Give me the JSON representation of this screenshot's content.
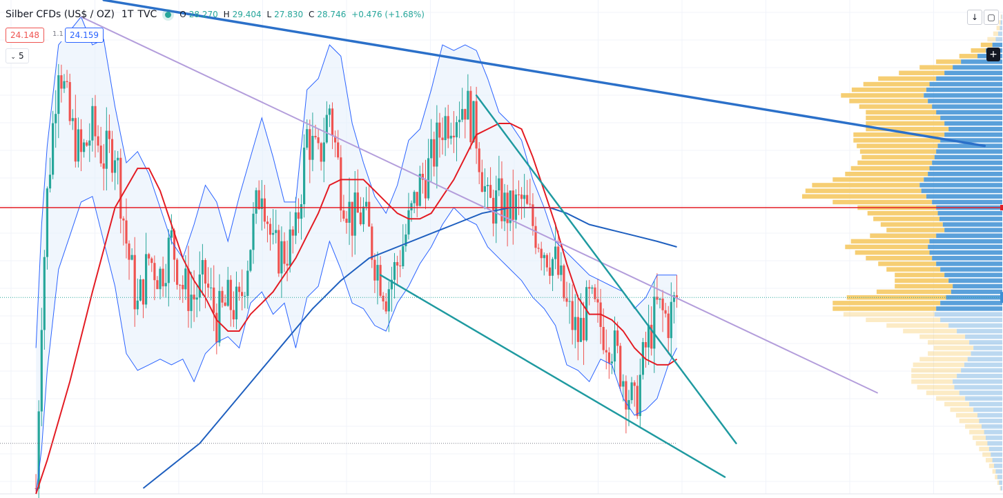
{
  "legend": {
    "symbol": "Silber CFDs (US$ / OZ)",
    "interval": "1T",
    "source": "TVC",
    "open_label": "O",
    "open": "28.270",
    "high_label": "H",
    "high": "29.404",
    "low_label": "L",
    "low": "27.830",
    "close_label": "C",
    "close": "28.746",
    "change": "+0.476 (+1.68%)"
  },
  "quote": {
    "bid": "24.148",
    "spread": "1.1",
    "ask": "24.159"
  },
  "indicators_toggle": {
    "chevron": "⌄",
    "count": "5"
  },
  "toolbar": {
    "download_icon": "arrow-down-icon",
    "fullscreen_icon": "square-icon",
    "add_icon": "plus-icon",
    "download_glyph": "↓",
    "fullscreen_glyph": "▢",
    "add_glyph": "+"
  },
  "chart_data": {
    "type": "candlestick",
    "x_range": [
      0,
      120
    ],
    "y_range": [
      22.0,
      30.8
    ],
    "colors": {
      "up": "#26a69a",
      "down": "#ef5350",
      "bollinger_band": "#2962ff",
      "bollinger_fill": "#e3effc",
      "sma_short": "#e31b23",
      "sma_long": "#1e5fbf",
      "horizontal_level": "#e31b23",
      "trendline_teal": "#1f9aa0",
      "trendline_blue": "#2b70c9",
      "trendline_lilac": "#b39ddb",
      "volume_profile_up": "#3d8fd4",
      "volume_profile_down": "#f5c65a"
    },
    "candle_trend": [
      [
        6,
        22.1
      ],
      [
        7,
        25.3
      ],
      [
        8,
        27.3
      ],
      [
        10,
        29.8
      ],
      [
        12,
        28.6
      ],
      [
        14,
        28.0
      ],
      [
        16,
        28.5
      ],
      [
        18,
        28.0
      ],
      [
        20,
        28.2
      ],
      [
        22,
        26.5
      ],
      [
        24,
        25.3
      ],
      [
        26,
        26.2
      ],
      [
        28,
        25.9
      ],
      [
        30,
        26.5
      ],
      [
        32,
        25.7
      ],
      [
        34,
        25.5
      ],
      [
        36,
        25.8
      ],
      [
        38,
        25.1
      ],
      [
        40,
        25.4
      ],
      [
        42,
        25.3
      ],
      [
        44,
        26.5
      ],
      [
        46,
        27.6
      ],
      [
        48,
        26.3
      ],
      [
        50,
        26.3
      ],
      [
        52,
        26.6
      ],
      [
        54,
        28.4
      ],
      [
        56,
        27.9
      ],
      [
        58,
        28.9
      ],
      [
        60,
        27.5
      ],
      [
        62,
        26.9
      ],
      [
        64,
        27.0
      ],
      [
        66,
        26.2
      ],
      [
        68,
        25.6
      ],
      [
        70,
        26.1
      ],
      [
        72,
        26.8
      ],
      [
        74,
        27.5
      ],
      [
        76,
        27.9
      ],
      [
        78,
        28.6
      ],
      [
        80,
        28.8
      ],
      [
        82,
        29.0
      ],
      [
        84,
        28.4
      ],
      [
        86,
        27.1
      ],
      [
        88,
        27.2
      ],
      [
        90,
        27.0
      ],
      [
        92,
        27.2
      ],
      [
        94,
        26.8
      ],
      [
        96,
        26.4
      ],
      [
        98,
        26.1
      ],
      [
        100,
        25.3
      ],
      [
        102,
        24.8
      ],
      [
        104,
        25.4
      ],
      [
        106,
        25.0
      ],
      [
        108,
        24.7
      ],
      [
        110,
        24.1
      ],
      [
        112,
        23.5
      ],
      [
        114,
        24.6
      ],
      [
        116,
        25.3
      ],
      [
        118,
        25.1
      ],
      [
        119.5,
        25.5
      ]
    ],
    "bollinger_upper": [
      [
        6,
        24.6
      ],
      [
        7,
        26.8
      ],
      [
        8,
        28.2
      ],
      [
        10,
        30.0
      ],
      [
        14,
        30.5
      ],
      [
        16,
        30.0
      ],
      [
        18,
        30.1
      ],
      [
        20,
        28.9
      ],
      [
        22,
        27.9
      ],
      [
        24,
        28.1
      ],
      [
        26,
        27.7
      ],
      [
        28,
        27.1
      ],
      [
        30,
        26.5
      ],
      [
        32,
        26.2
      ],
      [
        34,
        26.8
      ],
      [
        36,
        27.5
      ],
      [
        38,
        27.2
      ],
      [
        40,
        26.5
      ],
      [
        42,
        27.3
      ],
      [
        44,
        28.0
      ],
      [
        46,
        28.7
      ],
      [
        48,
        28.0
      ],
      [
        50,
        27.2
      ],
      [
        52,
        27.2
      ],
      [
        54,
        29.2
      ],
      [
        56,
        29.4
      ],
      [
        58,
        30.0
      ],
      [
        60,
        29.8
      ],
      [
        62,
        28.6
      ],
      [
        64,
        27.9
      ],
      [
        66,
        27.3
      ],
      [
        68,
        27.0
      ],
      [
        70,
        27.5
      ],
      [
        72,
        28.3
      ],
      [
        74,
        28.5
      ],
      [
        76,
        29.2
      ],
      [
        78,
        30.0
      ],
      [
        80,
        29.9
      ],
      [
        82,
        30.0
      ],
      [
        84,
        29.9
      ],
      [
        86,
        29.4
      ],
      [
        88,
        28.8
      ],
      [
        90,
        28.6
      ],
      [
        92,
        28.3
      ],
      [
        94,
        27.6
      ],
      [
        96,
        27.1
      ],
      [
        98,
        26.5
      ],
      [
        100,
        26.3
      ],
      [
        102,
        26.1
      ],
      [
        104,
        25.9
      ],
      [
        106,
        25.8
      ],
      [
        108,
        25.7
      ],
      [
        110,
        25.6
      ],
      [
        112,
        25.3
      ],
      [
        114,
        25.5
      ],
      [
        116,
        25.9
      ],
      [
        118,
        25.9
      ],
      [
        119.5,
        25.9
      ]
    ],
    "bollinger_lower": [
      [
        6,
        22.0
      ],
      [
        7,
        22.8
      ],
      [
        8,
        24.2
      ],
      [
        10,
        26.0
      ],
      [
        12,
        26.6
      ],
      [
        14,
        27.2
      ],
      [
        16,
        27.3
      ],
      [
        18,
        26.5
      ],
      [
        20,
        25.7
      ],
      [
        22,
        24.5
      ],
      [
        24,
        24.2
      ],
      [
        26,
        24.3
      ],
      [
        28,
        24.4
      ],
      [
        30,
        24.3
      ],
      [
        32,
        24.4
      ],
      [
        34,
        24.0
      ],
      [
        36,
        24.5
      ],
      [
        38,
        24.7
      ],
      [
        40,
        24.8
      ],
      [
        42,
        24.6
      ],
      [
        44,
        25.4
      ],
      [
        46,
        25.6
      ],
      [
        48,
        25.2
      ],
      [
        50,
        25.4
      ],
      [
        52,
        24.6
      ],
      [
        54,
        25.5
      ],
      [
        56,
        25.7
      ],
      [
        58,
        26.5
      ],
      [
        60,
        26.0
      ],
      [
        62,
        25.4
      ],
      [
        64,
        25.3
      ],
      [
        66,
        25.0
      ],
      [
        68,
        24.9
      ],
      [
        70,
        25.4
      ],
      [
        72,
        25.7
      ],
      [
        74,
        26.1
      ],
      [
        76,
        26.4
      ],
      [
        78,
        26.8
      ],
      [
        80,
        27.1
      ],
      [
        82,
        26.9
      ],
      [
        84,
        26.8
      ],
      [
        86,
        26.4
      ],
      [
        88,
        26.2
      ],
      [
        90,
        26.0
      ],
      [
        92,
        25.8
      ],
      [
        94,
        25.5
      ],
      [
        96,
        25.3
      ],
      [
        98,
        25.0
      ],
      [
        100,
        24.3
      ],
      [
        102,
        24.2
      ],
      [
        104,
        24.0
      ],
      [
        106,
        24.4
      ],
      [
        108,
        24.3
      ],
      [
        110,
        23.7
      ],
      [
        112,
        23.4
      ],
      [
        114,
        23.5
      ],
      [
        116,
        23.7
      ],
      [
        118,
        24.3
      ],
      [
        119.5,
        24.6
      ]
    ],
    "sma_short": [
      [
        6,
        22.0
      ],
      [
        8,
        22.6
      ],
      [
        12,
        24.0
      ],
      [
        16,
        25.6
      ],
      [
        20,
        27.1
      ],
      [
        24,
        27.8
      ],
      [
        26,
        27.8
      ],
      [
        28,
        27.4
      ],
      [
        30,
        26.8
      ],
      [
        32,
        26.2
      ],
      [
        34,
        25.8
      ],
      [
        36,
        25.5
      ],
      [
        38,
        25.1
      ],
      [
        40,
        24.9
      ],
      [
        42,
        24.9
      ],
      [
        44,
        25.2
      ],
      [
        46,
        25.4
      ],
      [
        48,
        25.6
      ],
      [
        50,
        25.9
      ],
      [
        52,
        26.2
      ],
      [
        54,
        26.6
      ],
      [
        56,
        27.0
      ],
      [
        58,
        27.5
      ],
      [
        60,
        27.6
      ],
      [
        62,
        27.6
      ],
      [
        64,
        27.6
      ],
      [
        66,
        27.4
      ],
      [
        68,
        27.2
      ],
      [
        70,
        27.0
      ],
      [
        72,
        26.9
      ],
      [
        74,
        26.9
      ],
      [
        76,
        27.0
      ],
      [
        78,
        27.3
      ],
      [
        80,
        27.6
      ],
      [
        82,
        28.0
      ],
      [
        84,
        28.4
      ],
      [
        86,
        28.5
      ],
      [
        88,
        28.6
      ],
      [
        90,
        28.6
      ],
      [
        92,
        28.5
      ],
      [
        94,
        28.0
      ],
      [
        96,
        27.4
      ],
      [
        98,
        26.8
      ],
      [
        100,
        26.1
      ],
      [
        102,
        25.5
      ],
      [
        104,
        25.2
      ],
      [
        106,
        25.2
      ],
      [
        108,
        25.1
      ],
      [
        110,
        24.9
      ],
      [
        112,
        24.6
      ],
      [
        114,
        24.4
      ],
      [
        116,
        24.3
      ],
      [
        118,
        24.3
      ],
      [
        119.5,
        24.4
      ]
    ],
    "sma_long": [
      [
        25,
        22.1
      ],
      [
        30,
        22.5
      ],
      [
        35,
        22.9
      ],
      [
        40,
        23.5
      ],
      [
        45,
        24.1
      ],
      [
        50,
        24.7
      ],
      [
        55,
        25.3
      ],
      [
        60,
        25.8
      ],
      [
        65,
        26.2
      ],
      [
        70,
        26.4
      ],
      [
        75,
        26.6
      ],
      [
        80,
        26.8
      ],
      [
        85,
        27.0
      ],
      [
        90,
        27.1
      ],
      [
        94,
        27.1
      ],
      [
        97,
        27.1
      ],
      [
        100,
        27.0
      ],
      [
        104,
        26.8
      ],
      [
        108,
        26.7
      ],
      [
        112,
        26.6
      ],
      [
        116,
        26.5
      ],
      [
        119.5,
        26.4
      ]
    ],
    "horizontal_level": 27.1,
    "current_price_line": 25.5,
    "dotted_level": 22.9,
    "trendlines": [
      {
        "color": "blue",
        "points": [
          [
            18,
            30.8
          ],
          [
            174,
            28.2
          ]
        ]
      },
      {
        "color": "lilac",
        "points": [
          [
            14,
            30.5
          ],
          [
            155,
            23.8
          ]
        ]
      },
      {
        "color": "teal",
        "points": [
          [
            84,
            29.1
          ],
          [
            130,
            22.9
          ]
        ]
      },
      {
        "color": "teal",
        "points": [
          [
            67,
            25.9
          ],
          [
            128,
            22.3
          ]
        ]
      }
    ],
    "volume_profile": {
      "price_levels": [
        30.5,
        30.4,
        30.3,
        30.2,
        30.1,
        30.0,
        29.9,
        29.8,
        29.7,
        29.6,
        29.5,
        29.4,
        29.3,
        29.2,
        29.1,
        29.0,
        28.9,
        28.8,
        28.7,
        28.6,
        28.5,
        28.4,
        28.3,
        28.2,
        28.1,
        28.0,
        27.9,
        27.8,
        27.7,
        27.6,
        27.5,
        27.4,
        27.3,
        27.2,
        27.1,
        27.0,
        26.9,
        26.8,
        26.7,
        26.6,
        26.5,
        26.4,
        26.3,
        26.2,
        26.1,
        26.0,
        25.9,
        25.8,
        25.7,
        25.6,
        25.5,
        25.4,
        25.3,
        25.2,
        25.1,
        25.0,
        24.9,
        24.8,
        24.7,
        24.6,
        24.5,
        24.4,
        24.3,
        24.2,
        24.1,
        24.0,
        23.9,
        23.8,
        23.7,
        23.6,
        23.5,
        23.4,
        23.3,
        23.2,
        23.1,
        23.0,
        22.9,
        22.8,
        22.7,
        22.6,
        22.5,
        22.4,
        22.3,
        22.2,
        22.1
      ],
      "up_volume": [
        1,
        2,
        3,
        5,
        8,
        12,
        20,
        30,
        50,
        60,
        70,
        80,
        88,
        92,
        95,
        90,
        85,
        80,
        75,
        70,
        65,
        70,
        75,
        78,
        80,
        82,
        85,
        88,
        90,
        95,
        100,
        98,
        92,
        85,
        80,
        78,
        76,
        72,
        70,
        80,
        88,
        90,
        88,
        85,
        80,
        75,
        70,
        65,
        60,
        62,
        68,
        75,
        80,
        82,
        75,
        65,
        55,
        45,
        40,
        35,
        38,
        42,
        46,
        50,
        55,
        60,
        58,
        52,
        45,
        40,
        35,
        30,
        28,
        25,
        22,
        20,
        18,
        16,
        14,
        12,
        10,
        8,
        6,
        4,
        2
      ],
      "down_volume": [
        1,
        2,
        4,
        6,
        10,
        14,
        18,
        22,
        30,
        40,
        55,
        70,
        80,
        90,
        100,
        95,
        88,
        85,
        90,
        95,
        100,
        110,
        105,
        98,
        92,
        88,
        90,
        95,
        100,
        110,
        130,
        140,
        150,
        120,
        95,
        85,
        80,
        75,
        70,
        80,
        95,
        100,
        90,
        80,
        70,
        65,
        60,
        65,
        70,
        90,
        120,
        130,
        125,
        110,
        90,
        75,
        65,
        55,
        50,
        48,
        52,
        58,
        62,
        60,
        55,
        50,
        45,
        40,
        35,
        30,
        28,
        26,
        24,
        20,
        18,
        16,
        14,
        12,
        10,
        8,
        6,
        4,
        3,
        2,
        1
      ]
    }
  }
}
